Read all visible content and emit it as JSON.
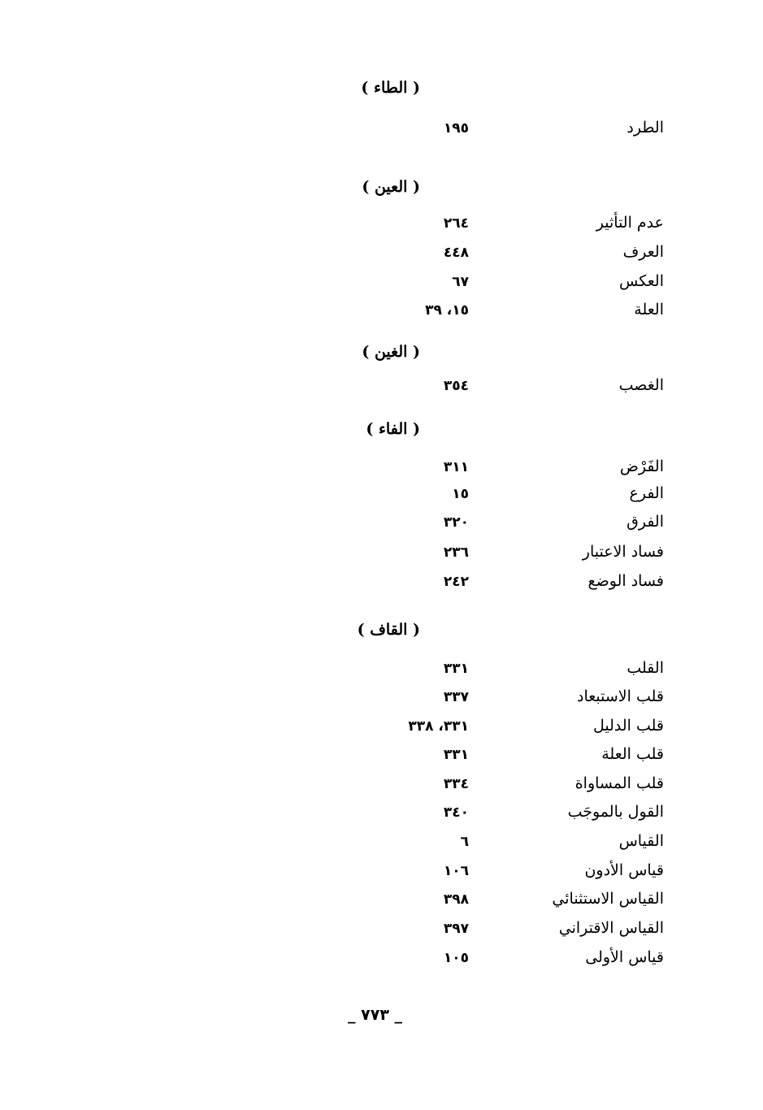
{
  "sections": [
    {
      "heading": "( الطاء )",
      "entries": [
        {
          "term": "الطرد",
          "pages": "١٩٥"
        }
      ]
    },
    {
      "heading": "( العين )",
      "entries": [
        {
          "term": "عدم التأثير",
          "pages": "٢٦٤"
        },
        {
          "term": "العرف",
          "pages": "٤٤٨"
        },
        {
          "term": "العكس",
          "pages": "٦٧"
        },
        {
          "term": "العلة",
          "pages": "١٥، ٣٩"
        }
      ]
    },
    {
      "heading": "( الغين )",
      "entries": [
        {
          "term": "الغصب",
          "pages": "٣٥٤"
        }
      ]
    },
    {
      "heading": "( الفاء )",
      "entries": [
        {
          "term": "الفَرْض",
          "pages": "٣١١"
        },
        {
          "term": "الفرع",
          "pages": "١٥"
        },
        {
          "term": "الفرق",
          "pages": "٣٢٠"
        },
        {
          "term": "فساد الاعتبار",
          "pages": "٢٣٦"
        },
        {
          "term": "فساد الوضع",
          "pages": "٢٤٢"
        }
      ]
    },
    {
      "heading": "( القاف )",
      "entries": [
        {
          "term": "القلب",
          "pages": "٣٣١"
        },
        {
          "term": "قلب الاستبعاد",
          "pages": "٣٣٧"
        },
        {
          "term": "قلب الدليل",
          "pages": "٣٣١، ٣٣٨"
        },
        {
          "term": "قلب العلة",
          "pages": "٣٣١"
        },
        {
          "term": "قلب المساواة",
          "pages": "٣٣٤"
        },
        {
          "term": "القول بالموجَب",
          "pages": "٣٤٠"
        },
        {
          "term": "القياس",
          "pages": "٦"
        },
        {
          "term": "قياس الأدون",
          "pages": "١٠٦"
        },
        {
          "term": "القياس الاستثنائي",
          "pages": "٣٩٨"
        },
        {
          "term": "القياس الاقتراني",
          "pages": "٣٩٧"
        },
        {
          "term": "قياس الأولى",
          "pages": "١٠٥"
        }
      ]
    }
  ],
  "folio": "_ ٧٧٣ _"
}
